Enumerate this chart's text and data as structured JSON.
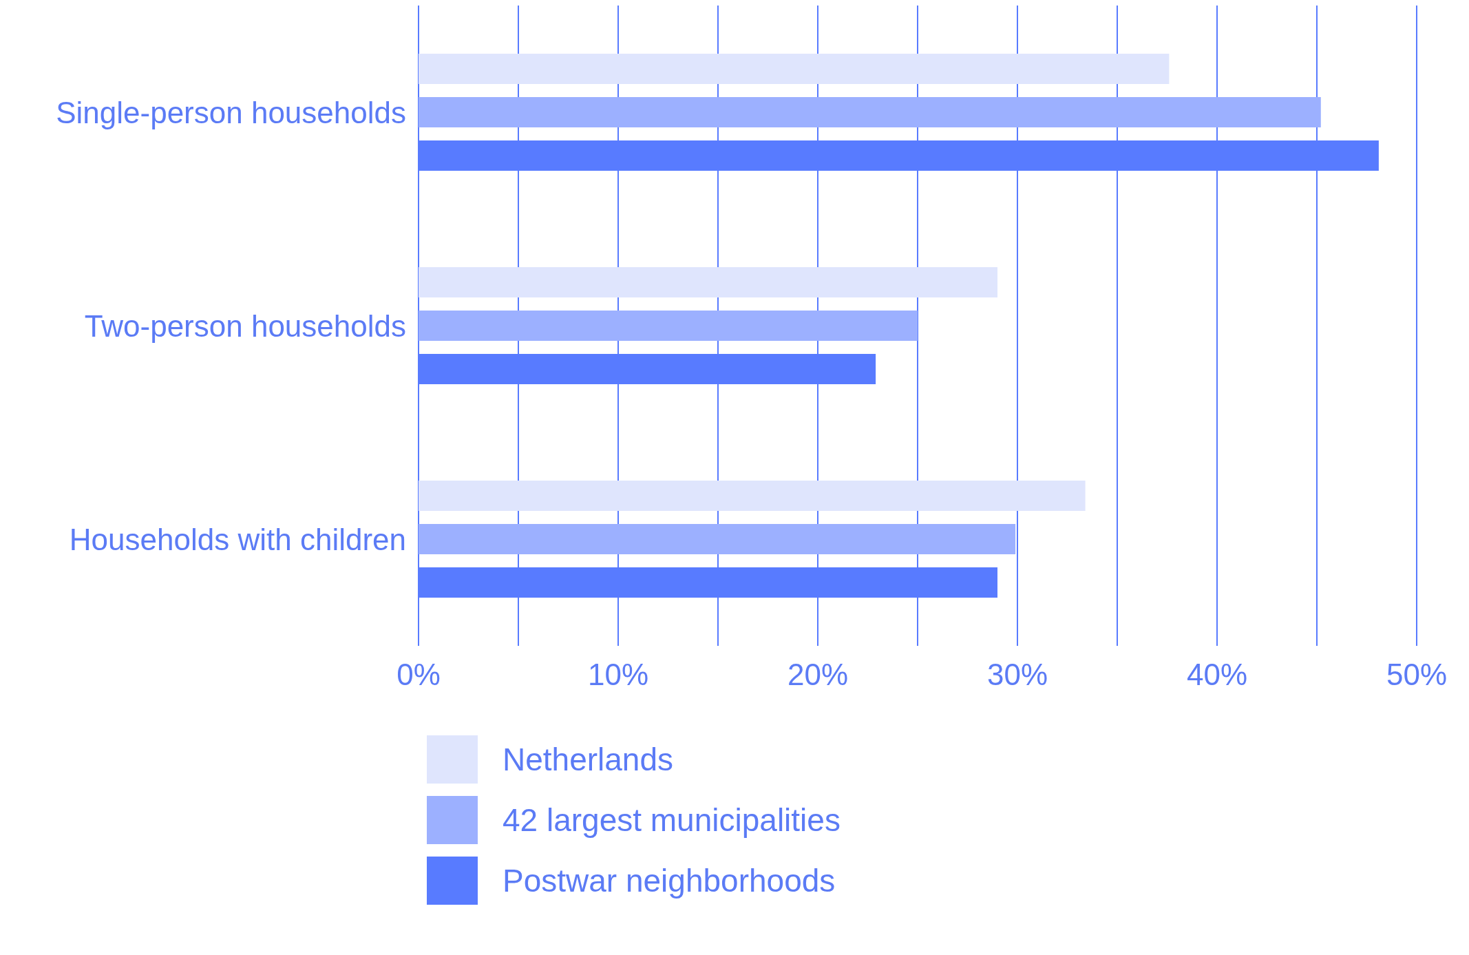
{
  "chart_data": {
    "type": "bar",
    "orientation": "horizontal",
    "categories": [
      "Single-person households",
      "Two-person households",
      "Households with children"
    ],
    "series": [
      {
        "name": "Netherlands",
        "color": "#dfe5fd",
        "values": [
          37.6,
          29.0,
          33.4
        ]
      },
      {
        "name": "42 largest municipalities",
        "color": "#9cb0ff",
        "values": [
          45.2,
          25.0,
          29.9
        ]
      },
      {
        "name": "Postwar neighborhoods",
        "color": "#587bff",
        "values": [
          48.1,
          22.9,
          29.0
        ]
      }
    ],
    "xlim": [
      0,
      50
    ],
    "xticks": [
      {
        "value": 0,
        "label": "0%"
      },
      {
        "value": 5,
        "label": null
      },
      {
        "value": 10,
        "label": "10%"
      },
      {
        "value": 15,
        "label": null
      },
      {
        "value": 20,
        "label": "20%"
      },
      {
        "value": 25,
        "label": null
      },
      {
        "value": 30,
        "label": "30%"
      },
      {
        "value": 35,
        "label": null
      },
      {
        "value": 40,
        "label": "40%"
      },
      {
        "value": 45,
        "label": null
      },
      {
        "value": 50,
        "label": "50%"
      }
    ],
    "grid": "x",
    "legend": "bottom"
  }
}
